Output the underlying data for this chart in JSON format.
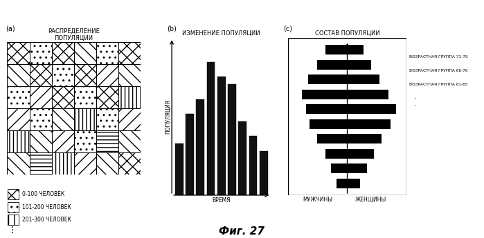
{
  "title_a": "РАСПРЕДЕЛЕНИЕ\nПОПУЛЯЦИИ",
  "title_b": "ИЗМЕНЕНИЕ ПОПУЛЯЦИИ",
  "title_c": "СОСТАВ ПОПУЛЯЦИИ",
  "fig_label": "Фиг. 27",
  "label_a": "(a)",
  "label_b": "(b)",
  "label_c": "(c)",
  "bar_values": [
    3.5,
    5.5,
    6.5,
    9.0,
    8.0,
    7.5,
    5.0,
    4.0,
    3.0
  ],
  "ylabel_b": "ПОПУЛЯЦИЯ",
  "xlabel_b": "ВРЕМЯ",
  "xlabel_c_left": "МУЖЧИНЫ",
  "xlabel_c_right": "ЖЕНЩИНЫ",
  "legend_items": [
    "0-100 ЧЕЛОВЕК",
    "101-200 ЧЕЛОВЕК",
    "201-300 ЧЕЛОВЕК"
  ],
  "pyramid_labels": [
    "ВОЗРАСТНАЯ ГРУППА 71-75",
    "ВОЗРАСТНАЯ ГРУППА 66-70",
    "ВОЗРАСТНАЯ ГРУППА 61-65"
  ],
  "men_bars": [
    1.0,
    1.5,
    2.0,
    2.8,
    3.5,
    3.8,
    4.2,
    3.6,
    2.8,
    2.0
  ],
  "women_bars": [
    1.2,
    1.8,
    2.5,
    3.2,
    4.0,
    4.5,
    3.8,
    3.0,
    2.2,
    1.5
  ],
  "grid_size": 6,
  "bg_color": "#ffffff",
  "bar_color": "#111111",
  "grid_patterns": [
    [
      0,
      1,
      0,
      2,
      1,
      0
    ],
    [
      2,
      0,
      1,
      0,
      3,
      2
    ],
    [
      1,
      3,
      0,
      1,
      0,
      4
    ],
    [
      3,
      1,
      2,
      4,
      1,
      3
    ],
    [
      4,
      2,
      3,
      1,
      5,
      2
    ],
    [
      2,
      5,
      4,
      3,
      2,
      6
    ]
  ]
}
